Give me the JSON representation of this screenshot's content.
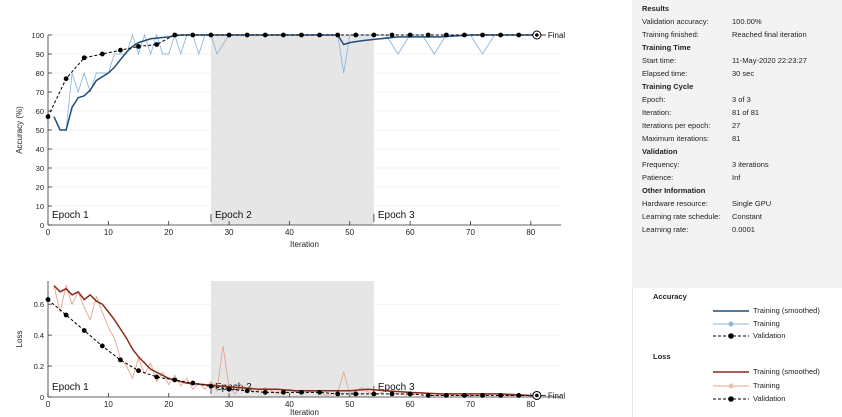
{
  "chart_data": [
    {
      "type": "line",
      "title": "",
      "xlabel": "Iteration",
      "ylabel": "Accuracy (%)",
      "xlim": [
        0,
        85
      ],
      "ylim": [
        0,
        100
      ],
      "xticks": [
        "0",
        "10",
        "20",
        "30",
        "40",
        "50",
        "60",
        "70",
        "80"
      ],
      "yticks": [
        "0",
        "10",
        "20",
        "30",
        "40",
        "50",
        "60",
        "70",
        "80",
        "90",
        "100"
      ],
      "epochs": [
        {
          "label": "Epoch 1",
          "start": 0,
          "end": 27
        },
        {
          "label": "Epoch 2",
          "start": 27,
          "end": 54
        },
        {
          "label": "Epoch 3",
          "start": 54,
          "end": 81
        }
      ],
      "final_label": "Final",
      "series": [
        {
          "name": "Training (smoothed)",
          "color": "#1f4e79",
          "x": [
            1,
            2,
            3,
            4,
            5,
            6,
            7,
            8,
            9,
            10,
            11,
            12,
            13,
            14,
            15,
            17,
            20,
            22,
            25,
            30,
            35,
            40,
            45,
            48,
            49,
            50,
            52,
            55,
            58,
            60,
            63,
            65,
            70,
            75,
            80,
            81
          ],
          "y": [
            57,
            50,
            50,
            62,
            67,
            68,
            71,
            76,
            78,
            80,
            83,
            87,
            91,
            94,
            96,
            98,
            99,
            100,
            100,
            100,
            100,
            100,
            100,
            100,
            95,
            96,
            97,
            98,
            99,
            99,
            99,
            99,
            100,
            100,
            100,
            100
          ]
        },
        {
          "name": "Training",
          "color": "#8fb8de",
          "x": [
            1,
            2,
            3,
            4,
            5,
            6,
            7,
            8,
            9,
            10,
            11,
            12,
            13,
            14,
            15,
            16,
            17,
            18,
            19,
            20,
            21,
            22,
            23,
            24,
            25,
            26,
            27,
            28,
            30,
            32,
            34,
            36,
            40,
            45,
            48,
            49,
            50,
            52,
            54,
            56,
            58,
            60,
            62,
            64,
            66,
            68,
            70,
            72,
            74,
            76,
            78,
            80,
            81
          ],
          "y": [
            57,
            50,
            50,
            80,
            70,
            80,
            70,
            80,
            80,
            80,
            90,
            90,
            90,
            100,
            90,
            100,
            90,
            100,
            90,
            90,
            100,
            90,
            100,
            100,
            90,
            100,
            100,
            90,
            100,
            100,
            100,
            100,
            100,
            100,
            100,
            80,
            100,
            100,
            100,
            100,
            90,
            100,
            100,
            90,
            100,
            100,
            100,
            90,
            100,
            100,
            100,
            100,
            100
          ]
        },
        {
          "name": "Validation",
          "color": "#000000",
          "x": [
            0,
            3,
            6,
            9,
            12,
            15,
            18,
            21,
            24,
            27,
            30,
            33,
            36,
            39,
            42,
            45,
            48,
            51,
            54,
            57,
            60,
            63,
            66,
            69,
            72,
            75,
            78,
            81
          ],
          "y": [
            57,
            77,
            88,
            90,
            92,
            94,
            95,
            100,
            100,
            100,
            100,
            100,
            100,
            100,
            100,
            100,
            100,
            100,
            100,
            100,
            100,
            100,
            100,
            100,
            100,
            100,
            100,
            100
          ]
        }
      ]
    },
    {
      "type": "line",
      "title": "",
      "xlabel": "Iteration",
      "ylabel": "Loss",
      "xlim": [
        0,
        85
      ],
      "ylim": [
        0,
        0.75
      ],
      "xticks": [
        "0",
        "10",
        "20",
        "30",
        "40",
        "50",
        "60",
        "70",
        "80"
      ],
      "yticks": [
        "0",
        "0.2",
        "0.4",
        "0.6"
      ],
      "epochs": [
        {
          "label": "Epoch 1",
          "start": 0,
          "end": 27
        },
        {
          "label": "Epoch 2",
          "start": 27,
          "end": 54
        },
        {
          "label": "Epoch 3",
          "start": 54,
          "end": 81
        }
      ],
      "final_label": "Final",
      "series": [
        {
          "name": "Training (smoothed)",
          "color": "#8b2a1a",
          "x": [
            1,
            2,
            3,
            4,
            5,
            6,
            7,
            8,
            9,
            10,
            11,
            12,
            13,
            14,
            15,
            17,
            20,
            23,
            26,
            29,
            32,
            35,
            38,
            41,
            44,
            47,
            50,
            53,
            56,
            60,
            65,
            70,
            75,
            80,
            81
          ],
          "y": [
            0.72,
            0.68,
            0.7,
            0.66,
            0.68,
            0.63,
            0.66,
            0.62,
            0.6,
            0.55,
            0.5,
            0.44,
            0.38,
            0.31,
            0.26,
            0.18,
            0.12,
            0.09,
            0.08,
            0.07,
            0.06,
            0.05,
            0.05,
            0.04,
            0.04,
            0.04,
            0.04,
            0.05,
            0.04,
            0.03,
            0.02,
            0.02,
            0.02,
            0.01,
            0.01
          ]
        },
        {
          "name": "Training",
          "color": "#e6a58c",
          "x": [
            1,
            2,
            3,
            4,
            5,
            6,
            7,
            8,
            9,
            10,
            11,
            12,
            13,
            14,
            15,
            16,
            17,
            18,
            19,
            20,
            21,
            22,
            23,
            24,
            25,
            26,
            27,
            28,
            29,
            30,
            31,
            32,
            34,
            36,
            38,
            40,
            42,
            44,
            46,
            48,
            49,
            50,
            52,
            54,
            56,
            58,
            60,
            62,
            64,
            66,
            68,
            70,
            72,
            74,
            76,
            78,
            80,
            81
          ],
          "y": [
            0.72,
            0.55,
            0.72,
            0.6,
            0.68,
            0.58,
            0.5,
            0.65,
            0.55,
            0.45,
            0.38,
            0.25,
            0.2,
            0.12,
            0.25,
            0.15,
            0.22,
            0.1,
            0.16,
            0.08,
            0.14,
            0.07,
            0.12,
            0.05,
            0.09,
            0.05,
            0.1,
            0.04,
            0.33,
            0.06,
            0.02,
            0.08,
            0.03,
            0.06,
            0.02,
            0.05,
            0.02,
            0.04,
            0.01,
            0.03,
            0.16,
            0.02,
            0.06,
            0.01,
            0.04,
            0.02,
            0.01,
            0.03,
            0.01,
            0.02,
            0.01,
            0.01,
            0.01,
            0.02,
            0.01,
            0.01,
            0.01,
            0.01
          ]
        },
        {
          "name": "Validation",
          "color": "#000000",
          "x": [
            0,
            3,
            6,
            9,
            12,
            15,
            18,
            21,
            24,
            27,
            30,
            33,
            36,
            39,
            42,
            45,
            48,
            51,
            54,
            57,
            60,
            63,
            66,
            69,
            72,
            75,
            78,
            81
          ],
          "y": [
            0.63,
            0.53,
            0.43,
            0.33,
            0.24,
            0.17,
            0.13,
            0.11,
            0.09,
            0.07,
            0.05,
            0.04,
            0.03,
            0.03,
            0.03,
            0.03,
            0.02,
            0.02,
            0.02,
            0.02,
            0.02,
            0.01,
            0.01,
            0.01,
            0.01,
            0.01,
            0.01,
            0.01
          ]
        }
      ]
    }
  ],
  "info": {
    "results": {
      "title": "Results",
      "rows": [
        {
          "k": "Validation accuracy:",
          "v": "100.00%"
        },
        {
          "k": "Training finished:",
          "v": "Reached final iteration"
        }
      ]
    },
    "training_time": {
      "title": "Training Time",
      "rows": [
        {
          "k": "Start time:",
          "v": "11-May-2020 22:23:27"
        },
        {
          "k": "Elapsed time:",
          "v": "30 sec"
        }
      ]
    },
    "training_cycle": {
      "title": "Training Cycle",
      "rows": [
        {
          "k": "Epoch:",
          "v": "3 of 3"
        },
        {
          "k": "Iteration:",
          "v": "81 of 81"
        },
        {
          "k": "Iterations per epoch:",
          "v": "27"
        },
        {
          "k": "Maximum iterations:",
          "v": "81"
        }
      ]
    },
    "validation": {
      "title": "Validation",
      "rows": [
        {
          "k": "Frequency:",
          "v": "3 iterations"
        },
        {
          "k": "Patience:",
          "v": "Inf"
        }
      ]
    },
    "other": {
      "title": "Other Information",
      "rows": [
        {
          "k": "Hardware resource:",
          "v": "Single GPU"
        },
        {
          "k": "Learning rate schedule:",
          "v": "Constant"
        },
        {
          "k": "Learning rate:",
          "v": "0.0001"
        }
      ]
    }
  },
  "legend": {
    "accuracy": {
      "title": "Accuracy",
      "items": [
        {
          "label": "Training (smoothed)",
          "color": "#1f4e79",
          "style": "solid"
        },
        {
          "label": "Training",
          "color": "#8fb8de",
          "style": "marker"
        },
        {
          "label": "Validation",
          "color": "#000000",
          "style": "dashed"
        }
      ]
    },
    "loss": {
      "title": "Loss",
      "items": [
        {
          "label": "Training (smoothed)",
          "color": "#8b2a1a",
          "style": "solid"
        },
        {
          "label": "Training",
          "color": "#e6a58c",
          "style": "marker"
        },
        {
          "label": "Validation",
          "color": "#000000",
          "style": "dashed"
        }
      ]
    }
  }
}
